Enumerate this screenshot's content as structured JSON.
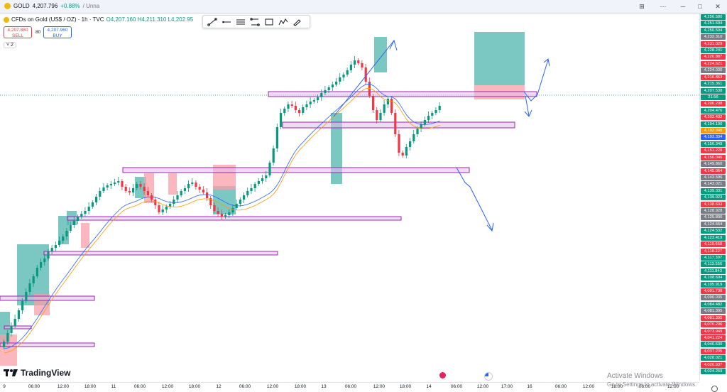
{
  "window": {
    "symbol": "GOLD",
    "price": "4,207.796",
    "change": "+0.88%",
    "extra": "/ Unna"
  },
  "legend": {
    "title": "CFDs on Gold (US$ / OZ) · 1h · TVC",
    "ohlc": "O4,207.160  H4,211.310  L4,202.95"
  },
  "trade": {
    "sell_price": "4,207.880",
    "sell_label": "SELL",
    "spread": "80",
    "buy_price": "4,207.960",
    "buy_label": "BUY"
  },
  "indicators_toggle": "2",
  "drawing_tools": [
    "trend-line",
    "horizontal-ray",
    "parallel-channel",
    "fib-retracement",
    "rectangle",
    "path",
    "brush"
  ],
  "price_axis": {
    "labels": [
      {
        "t": "4,256.580",
        "c": "#089981"
      },
      {
        "t": "4,251.694",
        "c": "#089981"
      },
      {
        "t": "4,250.504",
        "c": "#089981"
      },
      {
        "t": "4,232.310",
        "c": "#787b86"
      },
      {
        "t": "4,231.029",
        "c": "#f23645"
      },
      {
        "t": "4,228.241",
        "c": "#089981"
      },
      {
        "t": "4,226.887",
        "c": "#f23645"
      },
      {
        "t": "4,224.621",
        "c": "#f23645"
      },
      {
        "t": "4,224.030",
        "c": "#787b86"
      },
      {
        "t": "4,216.863",
        "c": "#f23645"
      },
      {
        "t": "4,215.361",
        "c": "#089981"
      },
      {
        "t": "4,207.538",
        "c": "#089981"
      },
      {
        "t": "21:56",
        "c": "#089981"
      },
      {
        "t": "4,206.208",
        "c": "#f23645"
      },
      {
        "t": "4,204.476",
        "c": "#089981"
      },
      {
        "t": "4,202.432",
        "c": "#f23645"
      },
      {
        "t": "4,194.190",
        "c": "#089981"
      },
      {
        "t": "4,193.948",
        "c": "#ff9800"
      },
      {
        "t": "4,193.334",
        "c": "#2962ff"
      },
      {
        "t": "4,156.349",
        "c": "#089981"
      },
      {
        "t": "4,151.228",
        "c": "#f23645"
      },
      {
        "t": "4,150.046",
        "c": "#f23645"
      },
      {
        "t": "4,149.860",
        "c": "#787b86"
      },
      {
        "t": "4,145.064",
        "c": "#f23645"
      },
      {
        "t": "4,143.596",
        "c": "#787b86"
      },
      {
        "t": "4,143.021",
        "c": "#787b86"
      },
      {
        "t": "4,139.331",
        "c": "#089981"
      },
      {
        "t": "4,139.023",
        "c": "#089981"
      },
      {
        "t": "4,138.633",
        "c": "#f23645"
      },
      {
        "t": "4,128.928",
        "c": "#787b86"
      },
      {
        "t": "4,125.800",
        "c": "#787b86"
      },
      {
        "t": "4,124.664",
        "c": "#787b86"
      },
      {
        "t": "4,124.532",
        "c": "#089981"
      },
      {
        "t": "4,123.419",
        "c": "#089981"
      },
      {
        "t": "4,119.668",
        "c": "#f23645"
      },
      {
        "t": "4,118.227",
        "c": "#f23645"
      },
      {
        "t": "4,117.397",
        "c": "#089981"
      },
      {
        "t": "4,113.556",
        "c": "#089981"
      },
      {
        "t": "4,111.843",
        "c": "#089981"
      },
      {
        "t": "4,108.604",
        "c": "#089981"
      },
      {
        "t": "4,105.919",
        "c": "#089981"
      },
      {
        "t": "4,091.738",
        "c": "#f23645"
      },
      {
        "t": "4,090.035",
        "c": "#787b86"
      },
      {
        "t": "4,084.482",
        "c": "#089981"
      },
      {
        "t": "4,081.395",
        "c": "#787b86"
      },
      {
        "t": "4,081.395",
        "c": "#f23645"
      },
      {
        "t": "4,076.296",
        "c": "#f23645"
      },
      {
        "t": "4,073.949",
        "c": "#f23645"
      },
      {
        "t": "4,041.224",
        "c": "#f23645"
      },
      {
        "t": "4,040.630",
        "c": "#089981"
      },
      {
        "t": "4,037.235",
        "c": "#f23645"
      },
      {
        "t": "4,028.021",
        "c": "#089981"
      },
      {
        "t": "4,026.937",
        "c": "#f23645"
      },
      {
        "t": "4,024.269",
        "c": "#089981"
      }
    ]
  },
  "time_axis": [
    "9",
    "06:00",
    "12:00",
    "18:00",
    "11",
    "06:00",
    "12:00",
    "18:00",
    "12",
    "06:00",
    "12:00",
    "18:00",
    "13",
    "06:00",
    "12:00",
    "18:00",
    "14",
    "06:00",
    "12:00",
    "17:00",
    "16",
    "06:00",
    "12:00",
    "18:00",
    "06:00",
    "12:00"
  ],
  "brand": "TradingView",
  "watermark": {
    "line1": "Activate Windows",
    "line2": "Go to Settings to activate Windows."
  },
  "colors": {
    "up": "#089981",
    "down": "#f23645",
    "zone": "#9c27b0",
    "arrow": "#2962ff",
    "ema_fast": "#2962ff",
    "ema_slow": "#ff9800"
  }
}
